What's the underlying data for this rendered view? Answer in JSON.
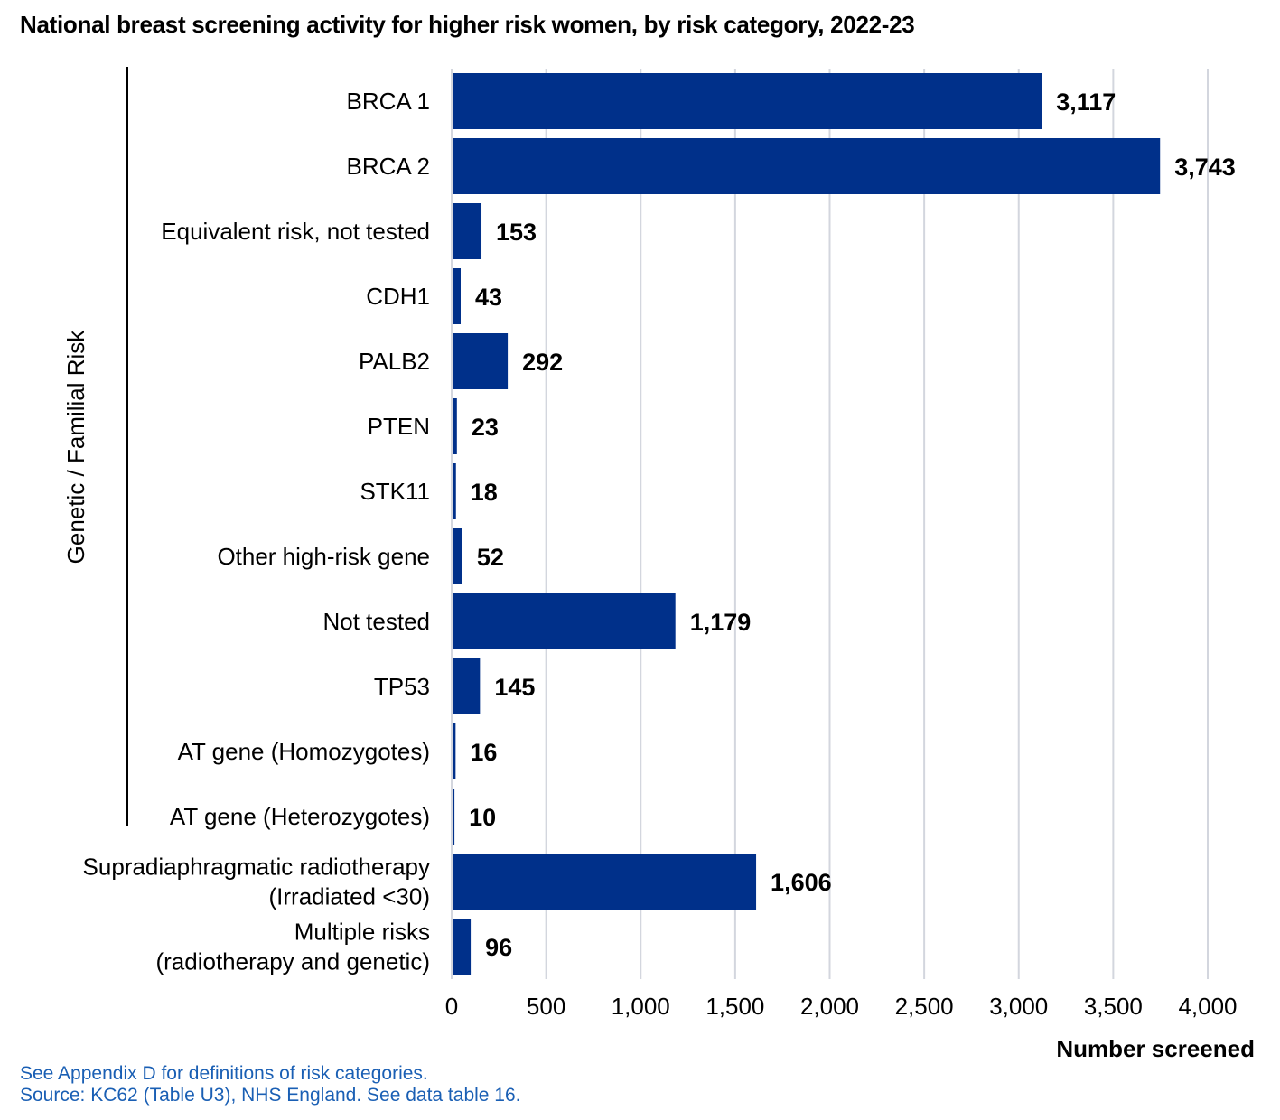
{
  "chart_data": {
    "type": "bar",
    "orientation": "horizontal",
    "title": "National breast screening activity for higher risk women, by risk category, 2022-23",
    "categories": [
      [
        "BRCA 1"
      ],
      [
        "BRCA 2"
      ],
      [
        "Equivalent risk, not tested"
      ],
      [
        "CDH1"
      ],
      [
        "PALB2"
      ],
      [
        "PTEN"
      ],
      [
        "STK11"
      ],
      [
        "Other high-risk gene"
      ],
      [
        "Not tested"
      ],
      [
        "TP53"
      ],
      [
        "AT gene (Homozygotes)"
      ],
      [
        "AT gene (Heterozygotes)"
      ],
      [
        "Supradiaphragmatic radiotherapy",
        "(Irradiated <30)"
      ],
      [
        "Multiple risks",
        "(radiotherapy and genetic)"
      ]
    ],
    "values": [
      3117,
      3743,
      153,
      43,
      292,
      23,
      18,
      52,
      1179,
      145,
      16,
      10,
      1606,
      96
    ],
    "value_labels": [
      "3,117",
      "3,743",
      "153",
      "43",
      "292",
      "23",
      "18",
      "52",
      "1,179",
      "145",
      "16",
      "10",
      "1,606",
      "96"
    ],
    "xlabel": "Number screened",
    "xlim": [
      0,
      4000
    ],
    "xticks": [
      0,
      500,
      1000,
      1500,
      2000,
      2500,
      3000,
      3500,
      4000
    ],
    "xtick_labels": [
      "0",
      "500",
      "1,000",
      "1,500",
      "2,000",
      "2,500",
      "3,000",
      "3,500",
      "4,000"
    ],
    "grid": "vertical",
    "group": {
      "label": "Genetic / Familial Risk",
      "first_index": 0,
      "last_index": 11
    },
    "bar_color": "#00308a"
  },
  "notes": {
    "line1": "See Appendix D for definitions of risk categories.",
    "line2": "Source: KC62 (Table U3), NHS England. See data table 16."
  }
}
